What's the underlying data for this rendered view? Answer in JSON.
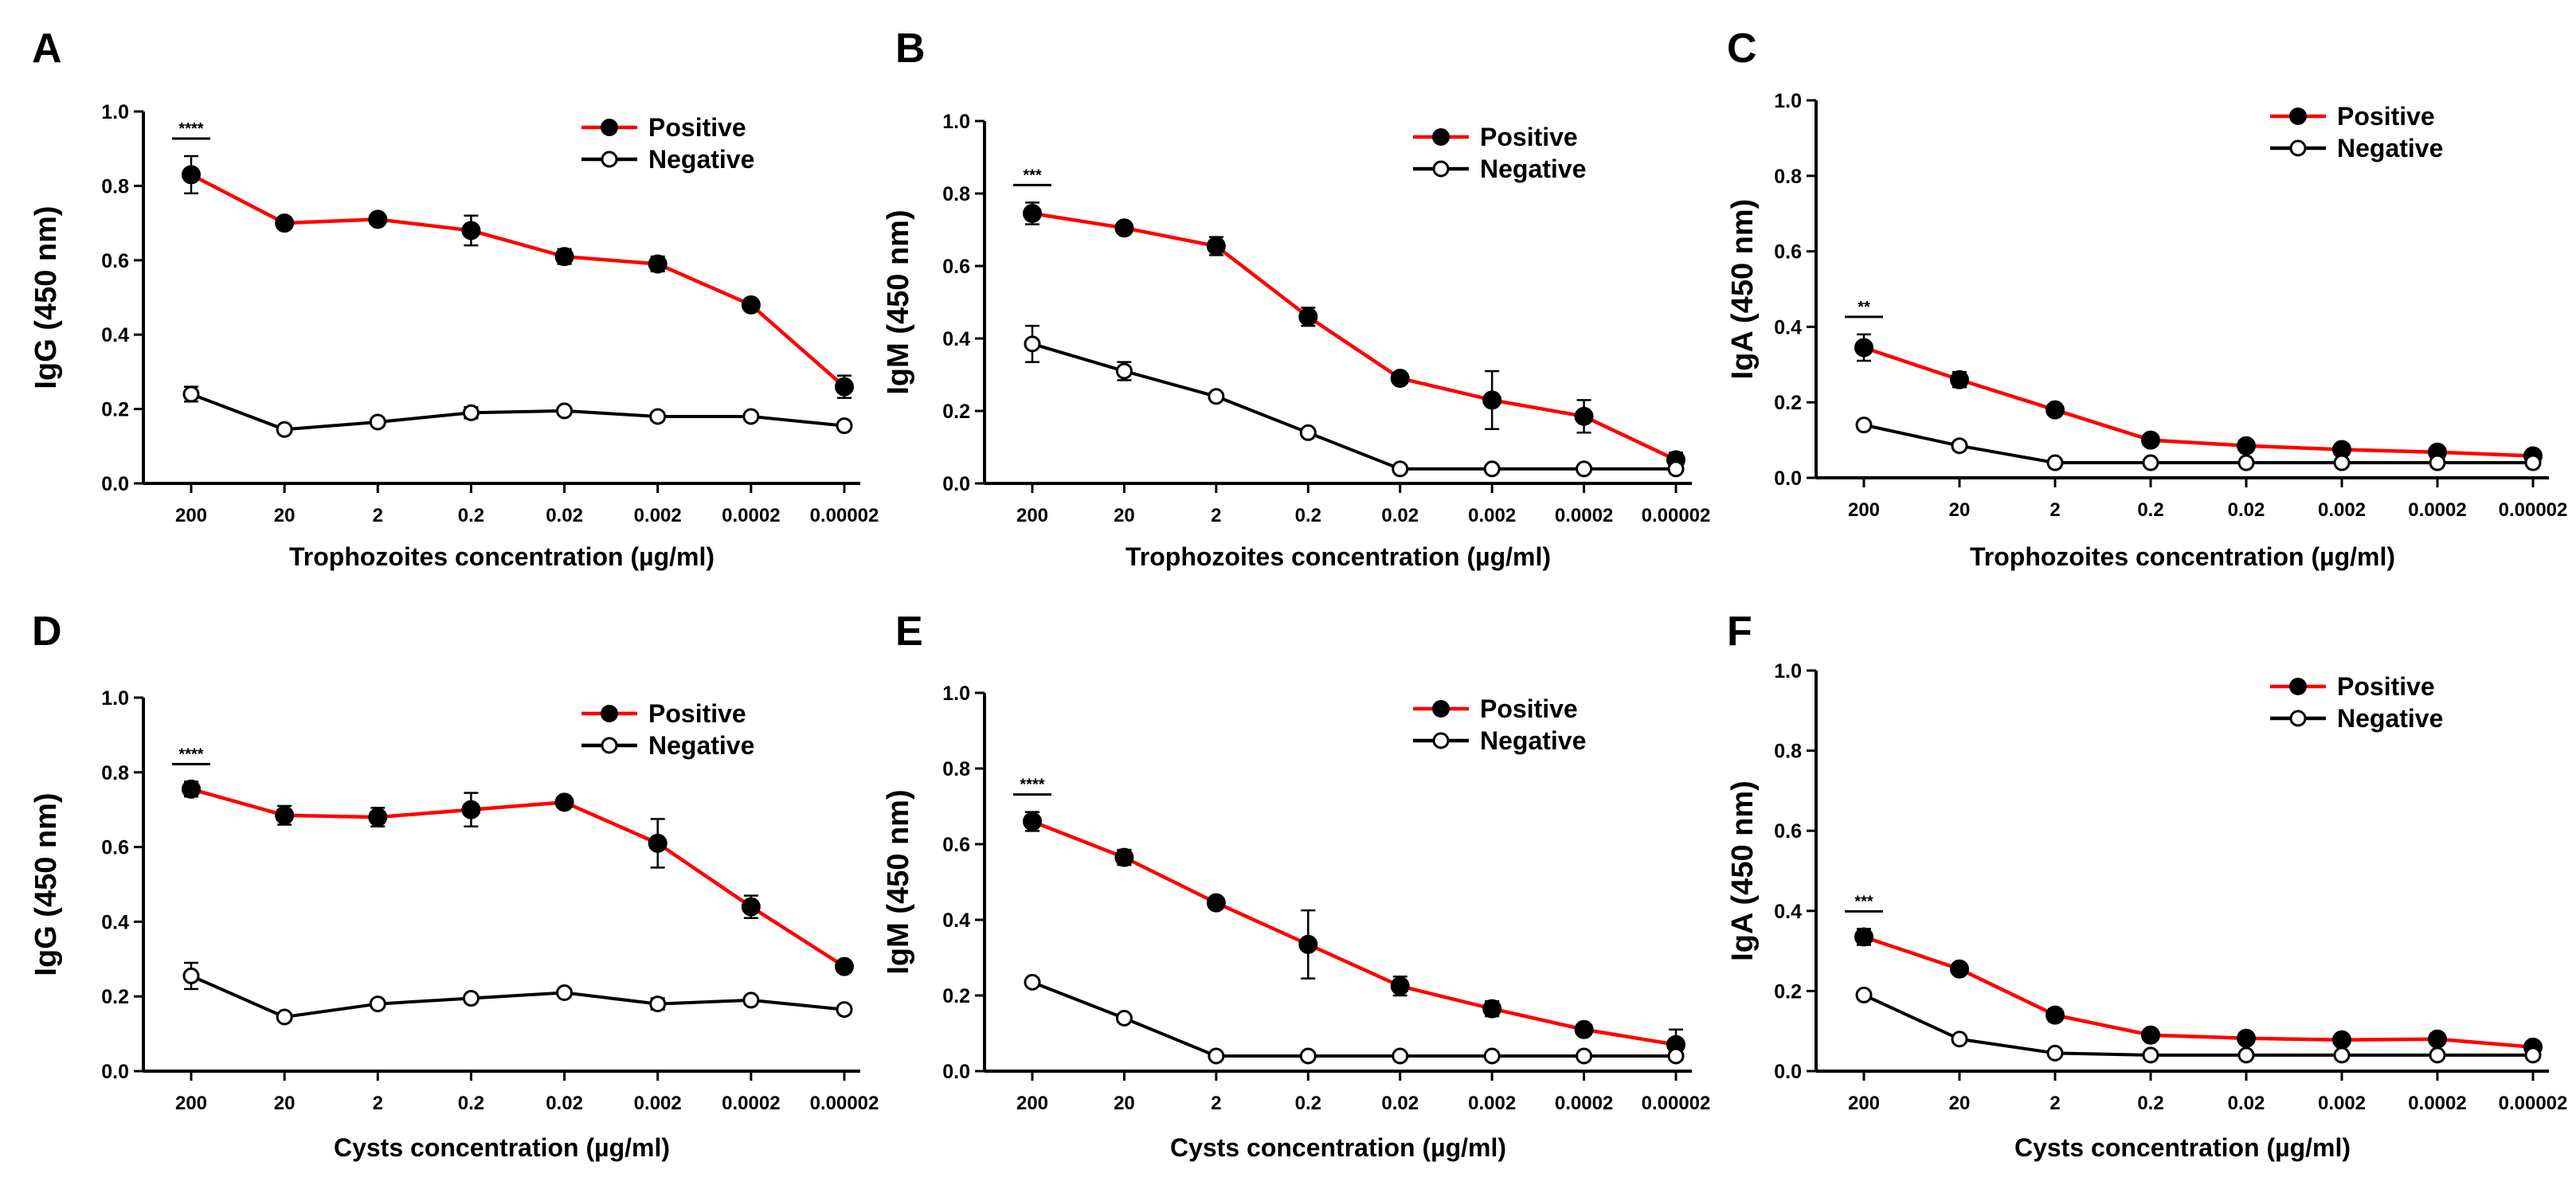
{
  "colors": {
    "positive": "#ff0000",
    "negative": "#000000",
    "axis": "#000000",
    "background": "#ffffff"
  },
  "chart_data": [
    {
      "panel": "A",
      "type": "line",
      "xlabel": "Trophozoites concentration (µg/ml)",
      "ylabel": "IgG (450 nm)",
      "categories": [
        "200",
        "20",
        "2",
        "0.2",
        "0.02",
        "0.002",
        "0.0002",
        "0.00002"
      ],
      "ylim": [
        0,
        1.0
      ],
      "yticks": [
        "0.0",
        "0.2",
        "0.4",
        "0.6",
        "0.8",
        "1.0"
      ],
      "significance": "****",
      "legend_position": "top-right",
      "series": [
        {
          "name": "Positive",
          "values": [
            0.83,
            0.7,
            0.71,
            0.68,
            0.61,
            0.59,
            0.48,
            0.26
          ],
          "errors": [
            0.05,
            0.01,
            0.01,
            0.04,
            0.02,
            0.02,
            0.01,
            0.03
          ]
        },
        {
          "name": "Negative",
          "values": [
            0.24,
            0.145,
            0.165,
            0.19,
            0.195,
            0.18,
            0.18,
            0.155
          ],
          "errors": [
            0.02,
            0.01,
            0.01,
            0.015,
            0.01,
            0.01,
            0.01,
            0.01
          ]
        }
      ]
    },
    {
      "panel": "B",
      "type": "line",
      "xlabel": "Trophozoites concentration (µg/ml)",
      "ylabel": "IgM (450 nm)",
      "categories": [
        "200",
        "20",
        "2",
        "0.2",
        "0.02",
        "0.002",
        "0.0002",
        "0.00002"
      ],
      "ylim": [
        0,
        1.0
      ],
      "yticks": [
        "0.0",
        "0.2",
        "0.4",
        "0.6",
        "0.8",
        "1.0"
      ],
      "significance": "***",
      "legend_position": "top-right",
      "series": [
        {
          "name": "Positive",
          "values": [
            0.745,
            0.705,
            0.655,
            0.46,
            0.29,
            0.23,
            0.185,
            0.065
          ],
          "errors": [
            0.03,
            0.01,
            0.025,
            0.025,
            0.01,
            0.08,
            0.045,
            0.02
          ]
        },
        {
          "name": "Negative",
          "values": [
            0.385,
            0.31,
            0.24,
            0.14,
            0.04,
            0.04,
            0.04,
            0.04
          ],
          "errors": [
            0.05,
            0.025,
            0.01,
            0.01,
            0.005,
            0.005,
            0.005,
            0.005
          ]
        }
      ]
    },
    {
      "panel": "C",
      "type": "line",
      "xlabel": "Trophozoites concentration (µg/ml)",
      "ylabel": "IgA (450 nm)",
      "categories": [
        "200",
        "20",
        "2",
        "0.2",
        "0.02",
        "0.002",
        "0.0002",
        "0.00002"
      ],
      "ylim": [
        0,
        1.0
      ],
      "yticks": [
        "0.0",
        "0.2",
        "0.4",
        "0.6",
        "0.8",
        "1.0"
      ],
      "significance": "**",
      "legend_position": "top-right",
      "series": [
        {
          "name": "Positive",
          "values": [
            0.345,
            0.26,
            0.18,
            0.1,
            0.085,
            0.075,
            0.068,
            0.058
          ],
          "errors": [
            0.035,
            0.02,
            0.01,
            0.01,
            0.01,
            0.01,
            0.01,
            0.01
          ]
        },
        {
          "name": "Negative",
          "values": [
            0.14,
            0.085,
            0.04,
            0.04,
            0.04,
            0.04,
            0.04,
            0.04
          ],
          "errors": [
            0.01,
            0.01,
            0.005,
            0.005,
            0.005,
            0.005,
            0.005,
            0.005
          ]
        }
      ]
    },
    {
      "panel": "D",
      "type": "line",
      "xlabel": "Cysts concentration (µg/ml)",
      "ylabel": "IgG (450 nm)",
      "categories": [
        "200",
        "20",
        "2",
        "0.2",
        "0.02",
        "0.002",
        "0.0002",
        "0.00002"
      ],
      "ylim": [
        0,
        1.0
      ],
      "yticks": [
        "0.0",
        "0.2",
        "0.4",
        "0.6",
        "0.8",
        "1.0"
      ],
      "significance": "****",
      "legend_position": "top-right",
      "series": [
        {
          "name": "Positive",
          "values": [
            0.755,
            0.685,
            0.68,
            0.7,
            0.72,
            0.61,
            0.44,
            0.28
          ],
          "errors": [
            0.02,
            0.025,
            0.025,
            0.045,
            0.01,
            0.065,
            0.03,
            0.015
          ]
        },
        {
          "name": "Negative",
          "values": [
            0.255,
            0.145,
            0.18,
            0.195,
            0.21,
            0.18,
            0.19,
            0.165
          ],
          "errors": [
            0.035,
            0.01,
            0.01,
            0.01,
            0.01,
            0.015,
            0.01,
            0.01
          ]
        }
      ]
    },
    {
      "panel": "E",
      "type": "line",
      "xlabel": "Cysts concentration (µg/ml)",
      "ylabel": "IgM (450 nm)",
      "categories": [
        "200",
        "20",
        "2",
        "0.2",
        "0.02",
        "0.002",
        "0.0002",
        "0.00002"
      ],
      "ylim": [
        0,
        1.0
      ],
      "yticks": [
        "0.0",
        "0.2",
        "0.4",
        "0.6",
        "0.8",
        "1.0"
      ],
      "significance": "****",
      "legend_position": "top-right",
      "series": [
        {
          "name": "Positive",
          "values": [
            0.66,
            0.565,
            0.445,
            0.335,
            0.225,
            0.165,
            0.11,
            0.07
          ],
          "errors": [
            0.025,
            0.02,
            0.01,
            0.09,
            0.025,
            0.02,
            0.01,
            0.04
          ]
        },
        {
          "name": "Negative",
          "values": [
            0.235,
            0.14,
            0.04,
            0.04,
            0.04,
            0.04,
            0.04,
            0.04
          ],
          "errors": [
            0.01,
            0.01,
            0.005,
            0.005,
            0.005,
            0.005,
            0.005,
            0.005
          ]
        }
      ]
    },
    {
      "panel": "F",
      "type": "line",
      "xlabel": "Cysts concentration (µg/ml)",
      "ylabel": "IgA (450 nm)",
      "categories": [
        "200",
        "20",
        "2",
        "0.2",
        "0.02",
        "0.002",
        "0.0002",
        "0.00002"
      ],
      "ylim": [
        0,
        1.0
      ],
      "yticks": [
        "0.0",
        "0.2",
        "0.4",
        "0.6",
        "0.8",
        "1.0"
      ],
      "significance": "***",
      "legend_position": "top-right",
      "series": [
        {
          "name": "Positive",
          "values": [
            0.335,
            0.255,
            0.14,
            0.09,
            0.082,
            0.078,
            0.08,
            0.06
          ],
          "errors": [
            0.02,
            0.01,
            0.015,
            0.01,
            0.01,
            0.01,
            0.01,
            0.01
          ]
        },
        {
          "name": "Negative",
          "values": [
            0.19,
            0.08,
            0.045,
            0.04,
            0.04,
            0.04,
            0.04,
            0.04
          ],
          "errors": [
            0.01,
            0.01,
            0.005,
            0.005,
            0.005,
            0.005,
            0.005,
            0.005
          ]
        }
      ]
    }
  ]
}
